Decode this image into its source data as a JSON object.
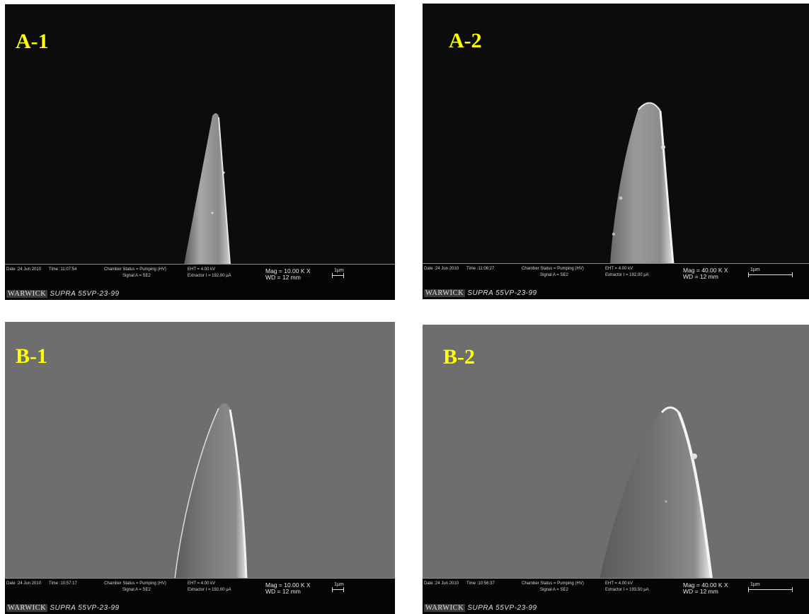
{
  "panels": [
    {
      "label": "A-1",
      "date": "Date :24 Jun 2010",
      "time": "Time :11:07:54",
      "chamber": "Chamber Status = Pumping (HV)",
      "signal": "Signal A = SE2",
      "eht": "EHT = 4.00 kV",
      "extractor": "Extractor I = 192.00 µA",
      "mag": "Mag = 10.00 K X",
      "wd": "WD = 12 mm",
      "scale": "1µm",
      "institution": "WARWICK",
      "model": "SUPRA 55VP-23-99"
    },
    {
      "label": "A-2",
      "date": "Date :24 Jun 2010",
      "time": "Time :11:06:27",
      "chamber": "Chamber Status = Pumping (HV)",
      "signal": "Signal A = SE2",
      "eht": "EHT = 4.00 kV",
      "extractor": "Extractor I = 192.00 µA",
      "mag": "Mag = 40.00 K X",
      "wd": "WD = 12 mm",
      "scale": "1µm",
      "institution": "WARWICK",
      "model": "SUPRA 55VP-23-99"
    },
    {
      "label": "B-1",
      "date": "Date :24 Jun 2010",
      "time": "Time :10:57:17",
      "chamber": "Chamber Status = Pumping (HV)",
      "signal": "Signal A = SE2",
      "eht": "EHT = 4.00 kV",
      "extractor": "Extractor I = 192.00 µA",
      "mag": "Mag = 10.00 K X",
      "wd": "WD = 12 mm",
      "scale": "1µm",
      "institution": "WARWICK",
      "model": "SUPRA 55VP-23-99"
    },
    {
      "label": "B-2",
      "date": "Date :24 Jun 2010",
      "time": "Time :10:56:37",
      "chamber": "Chamber Status = Pumping (HV)",
      "signal": "Signal A = SE2",
      "eht": "EHT = 4.00 kV",
      "extractor": "Extractor I = 193.50 µA",
      "mag": "Mag = 40.00 K X",
      "wd": "WD = 12 mm",
      "scale": "1µm",
      "institution": "WARWICK",
      "model": "SUPRA 55VP-23-99"
    }
  ],
  "colors": {
    "label": "#ffff00",
    "background_a": "#0c0c0c",
    "background_b": "#6e6e6e"
  }
}
